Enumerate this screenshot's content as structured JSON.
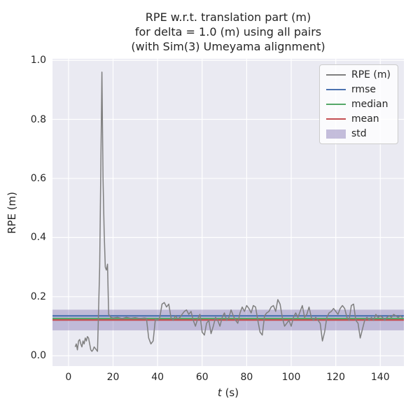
{
  "figure": {
    "title": "RPE w.r.t. translation part (m)\nfor delta = 1.0 (m) using all pairs\n(with Sim(3) Umeyama alignment)",
    "ylabel": "RPE (m)",
    "xlabel_var": "t",
    "xlabel_rest": " (s)"
  },
  "chart_data": {
    "type": "line",
    "title": "RPE w.r.t. translation part (m) for delta = 1.0 (m) using all pairs (with Sim(3) Umeyama alignment)",
    "xlabel": "t (s)",
    "ylabel": "RPE (m)",
    "grid": true,
    "legend_position": "upper right",
    "xlim": [
      -7.2,
      150.6
    ],
    "ylim": [
      -0.035,
      1.005
    ],
    "x_ticks": [
      0,
      20,
      40,
      60,
      80,
      100,
      120,
      140
    ],
    "x_tick_labels": [
      "0",
      "20",
      "40",
      "60",
      "80",
      "100",
      "120",
      "140"
    ],
    "y_ticks": [
      0.0,
      0.2,
      0.4,
      0.6,
      0.8,
      1.0
    ],
    "y_tick_labels": [
      "0.0",
      "0.2",
      "0.4",
      "0.6",
      "0.8",
      "1.0"
    ],
    "stats": {
      "rmse": 0.135,
      "median": 0.126,
      "mean": 0.121,
      "std_low": 0.086,
      "std_high": 0.156
    },
    "legend": [
      {
        "label": "RPE (m)",
        "color": "#7f7f7f",
        "type": "line"
      },
      {
        "label": "rmse",
        "color": "#4C72B0",
        "type": "line"
      },
      {
        "label": "median",
        "color": "#55A868",
        "type": "line"
      },
      {
        "label": "mean",
        "color": "#C44E52",
        "type": "line"
      },
      {
        "label": "std",
        "color": "#8172B2",
        "type": "patch"
      }
    ],
    "colors": {
      "plot_background": "#EAEAF2",
      "grid": "#FFFFFF",
      "rpe_line": "#7f7f7f",
      "rmse": "#4C72B0",
      "median": "#55A868",
      "mean": "#C44E52",
      "std_band": "#8172B2",
      "text": "#262626"
    },
    "series": [
      {
        "name": "RPE (m)",
        "x": [
          3,
          3.5,
          4,
          4.5,
          5,
          5.5,
          6,
          6.5,
          7,
          7.5,
          8,
          8.5,
          9,
          9.5,
          10,
          10.5,
          11,
          11.5,
          12,
          12.5,
          13,
          14,
          15,
          15.5,
          16,
          16.5,
          17,
          17.5,
          18,
          19,
          20,
          22,
          24,
          26,
          28,
          30,
          32,
          34,
          35,
          36,
          37,
          38,
          39,
          40,
          41,
          42,
          43,
          44,
          45,
          46,
          47,
          48,
          49,
          50,
          51,
          52,
          53,
          54,
          55,
          56,
          57,
          58,
          59,
          60,
          61,
          62,
          63,
          64,
          65,
          66,
          67,
          68,
          69,
          70,
          71,
          72,
          73,
          74,
          75,
          76,
          77,
          78,
          79,
          80,
          81,
          82,
          83,
          84,
          85,
          86,
          87,
          88,
          89,
          90,
          91,
          92,
          93,
          94,
          95,
          96,
          97,
          98,
          99,
          100,
          101,
          102,
          103,
          104,
          105,
          106,
          107,
          108,
          109,
          110,
          111,
          112,
          113,
          114,
          115,
          116,
          117,
          118,
          119,
          120,
          121,
          122,
          123,
          124,
          125,
          126,
          127,
          128,
          129,
          130,
          131,
          132,
          133,
          134,
          135,
          136,
          137,
          138,
          139,
          140,
          141,
          142,
          143,
          144,
          145,
          146,
          147,
          148,
          149,
          150
        ],
        "y": [
          0.03,
          0.04,
          0.02,
          0.05,
          0.055,
          0.04,
          0.03,
          0.05,
          0.04,
          0.06,
          0.05,
          0.065,
          0.06,
          0.04,
          0.02,
          0.015,
          0.02,
          0.03,
          0.025,
          0.02,
          0.015,
          0.3,
          0.96,
          0.6,
          0.42,
          0.3,
          0.29,
          0.31,
          0.14,
          0.13,
          0.128,
          0.13,
          0.126,
          0.13,
          0.127,
          0.129,
          0.126,
          0.128,
          0.127,
          0.06,
          0.04,
          0.05,
          0.125,
          0.12,
          0.13,
          0.175,
          0.18,
          0.165,
          0.175,
          0.13,
          0.12,
          0.135,
          0.125,
          0.13,
          0.14,
          0.15,
          0.155,
          0.14,
          0.15,
          0.12,
          0.1,
          0.125,
          0.14,
          0.08,
          0.07,
          0.11,
          0.12,
          0.075,
          0.1,
          0.13,
          0.12,
          0.1,
          0.13,
          0.145,
          0.12,
          0.13,
          0.155,
          0.135,
          0.12,
          0.11,
          0.145,
          0.165,
          0.15,
          0.17,
          0.16,
          0.145,
          0.17,
          0.165,
          0.12,
          0.08,
          0.07,
          0.135,
          0.145,
          0.15,
          0.165,
          0.17,
          0.15,
          0.19,
          0.175,
          0.13,
          0.1,
          0.11,
          0.12,
          0.1,
          0.13,
          0.145,
          0.13,
          0.15,
          0.17,
          0.13,
          0.14,
          0.165,
          0.13,
          0.12,
          0.13,
          0.12,
          0.11,
          0.05,
          0.08,
          0.13,
          0.145,
          0.15,
          0.16,
          0.15,
          0.14,
          0.16,
          0.17,
          0.16,
          0.13,
          0.12,
          0.17,
          0.175,
          0.12,
          0.11,
          0.06,
          0.09,
          0.12,
          0.13,
          0.12,
          0.13,
          0.12,
          0.14,
          0.13,
          0.135,
          0.13,
          0.12,
          0.13,
          0.135,
          0.13,
          0.14,
          0.135,
          0.13,
          0.135,
          0.13
        ]
      }
    ]
  }
}
